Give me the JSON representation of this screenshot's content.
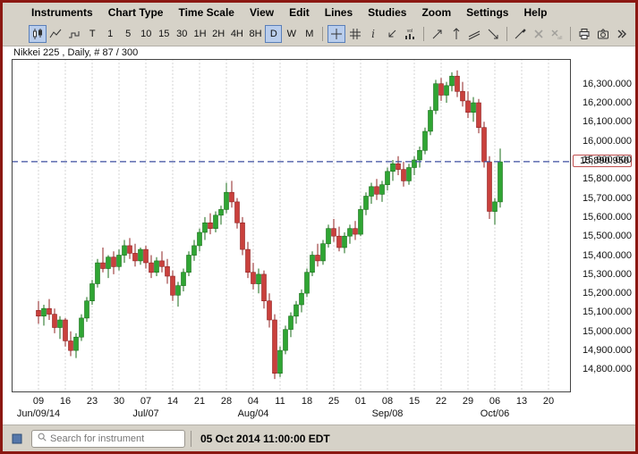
{
  "menu": {
    "items": [
      {
        "id": "instruments",
        "label": "Instruments"
      },
      {
        "id": "chart-type",
        "label": "Chart Type"
      },
      {
        "id": "time-scale",
        "label": "Time Scale"
      },
      {
        "id": "view",
        "label": "View"
      },
      {
        "id": "edit",
        "label": "Edit"
      },
      {
        "id": "lines",
        "label": "Lines"
      },
      {
        "id": "studies",
        "label": "Studies"
      },
      {
        "id": "zoom",
        "label": "Zoom"
      },
      {
        "id": "settings",
        "label": "Settings"
      },
      {
        "id": "help",
        "label": "Help"
      }
    ]
  },
  "toolbar": {
    "items": [
      {
        "name": "candlestick-chart-button",
        "icon": "candlestick",
        "selected": true
      },
      {
        "name": "line-chart-button",
        "icon": "line-chart"
      },
      {
        "name": "tick-chart-button",
        "icon": "tick-step"
      },
      {
        "name": "timescale-tick-button",
        "label": "T"
      },
      {
        "name": "timescale-1min-button",
        "label": "1"
      },
      {
        "name": "timescale-5min-button",
        "label": "5"
      },
      {
        "name": "timescale-10min-button",
        "label": "10"
      },
      {
        "name": "timescale-15min-button",
        "label": "15"
      },
      {
        "name": "timescale-30min-button",
        "label": "30"
      },
      {
        "name": "timescale-1h-button",
        "label": "1H"
      },
      {
        "name": "timescale-2h-button",
        "label": "2H"
      },
      {
        "name": "timescale-4h-button",
        "label": "4H"
      },
      {
        "name": "timescale-8h-button",
        "label": "8H"
      },
      {
        "name": "timescale-daily-button",
        "label": "D",
        "selected": true
      },
      {
        "name": "timescale-weekly-button",
        "label": "W"
      },
      {
        "name": "timescale-monthly-button",
        "label": "M"
      },
      {
        "separator": true
      },
      {
        "name": "crosshair-button",
        "icon": "crosshair",
        "selected": true
      },
      {
        "name": "grid-button",
        "icon": "grid"
      },
      {
        "name": "info-button",
        "icon": "info"
      },
      {
        "name": "data-window-button",
        "icon": "data-arrow"
      },
      {
        "name": "volume-button",
        "icon": "volume"
      },
      {
        "separator": true
      },
      {
        "name": "trend-line-button",
        "icon": "trend-line"
      },
      {
        "name": "vertical-line-button",
        "icon": "vertical-line"
      },
      {
        "name": "parallel-lines-button",
        "icon": "parallel-lines"
      },
      {
        "name": "ray-line-button",
        "icon": "ray"
      },
      {
        "separator": true
      },
      {
        "name": "edit-lines-button",
        "icon": "edit-line"
      },
      {
        "name": "delete-line-button",
        "icon": "close",
        "disabled": true
      },
      {
        "name": "delete-all-lines-button",
        "icon": "close-all",
        "disabled": true
      },
      {
        "separator": true
      },
      {
        "name": "print-button",
        "icon": "printer"
      },
      {
        "name": "snapshot-button",
        "icon": "camera"
      },
      {
        "name": "more-tools-button",
        "icon": "chevron-double-right",
        "align_right": true
      }
    ]
  },
  "chart_header": {
    "title": "Nikkei 225 , Daily, # 87 / 300"
  },
  "chart_data": {
    "type": "candlestick",
    "title": "Nikkei 225 , Daily, # 87 / 300",
    "symbol": "Nikkei 225",
    "timeframe": "Daily",
    "bar_count_label": "# 87 / 300",
    "current_price": 15890.95,
    "current_price_label": "15,890.950",
    "ylim": [
      14680,
      16430
    ],
    "grid": "vertical-dotted",
    "y_ticks": [
      16300,
      16200,
      16100,
      16000,
      15900,
      15800,
      15700,
      15600,
      15500,
      15400,
      15300,
      15200,
      15100,
      15000,
      14900,
      14800
    ],
    "x_ticks": [
      {
        "label": "09",
        "bar": 0
      },
      {
        "label": "16",
        "bar": 5
      },
      {
        "label": "23",
        "bar": 10
      },
      {
        "label": "30",
        "bar": 15
      },
      {
        "label": "07",
        "bar": 20
      },
      {
        "label": "14",
        "bar": 25
      },
      {
        "label": "21",
        "bar": 30
      },
      {
        "label": "28",
        "bar": 35
      },
      {
        "label": "04",
        "bar": 40
      },
      {
        "label": "11",
        "bar": 45
      },
      {
        "label": "18",
        "bar": 50
      },
      {
        "label": "25",
        "bar": 55
      },
      {
        "label": "01",
        "bar": 60
      },
      {
        "label": "08",
        "bar": 65
      },
      {
        "label": "15",
        "bar": 70
      },
      {
        "label": "22",
        "bar": 75
      },
      {
        "label": "29",
        "bar": 80
      },
      {
        "label": "06",
        "bar": 85
      },
      {
        "label": "13",
        "bar": 90
      },
      {
        "label": "20",
        "bar": 95
      }
    ],
    "month_labels": [
      {
        "label": "Jun/09/14",
        "bar": 0
      },
      {
        "label": "Jul/07",
        "bar": 20
      },
      {
        "label": "Aug/04",
        "bar": 40
      },
      {
        "label": "Sep/08",
        "bar": 65
      },
      {
        "label": "Oct/06",
        "bar": 85
      }
    ],
    "candles": [
      [
        15110,
        15160,
        15040,
        15080
      ],
      [
        15080,
        15140,
        15030,
        15120
      ],
      [
        15120,
        15170,
        15060,
        15090
      ],
      [
        15090,
        15120,
        14990,
        15020
      ],
      [
        15020,
        15080,
        14960,
        15060
      ],
      [
        15060,
        15070,
        14920,
        14950
      ],
      [
        14950,
        15000,
        14870,
        14900
      ],
      [
        14900,
        14990,
        14860,
        14970
      ],
      [
        14970,
        15090,
        14950,
        15070
      ],
      [
        15070,
        15180,
        15050,
        15160
      ],
      [
        15160,
        15270,
        15140,
        15250
      ],
      [
        15250,
        15380,
        15230,
        15360
      ],
      [
        15360,
        15440,
        15310,
        15330
      ],
      [
        15330,
        15400,
        15280,
        15390
      ],
      [
        15390,
        15420,
        15300,
        15340
      ],
      [
        15340,
        15430,
        15320,
        15400
      ],
      [
        15400,
        15480,
        15360,
        15450
      ],
      [
        15450,
        15490,
        15380,
        15410
      ],
      [
        15410,
        15460,
        15340,
        15370
      ],
      [
        15370,
        15440,
        15350,
        15430
      ],
      [
        15430,
        15450,
        15330,
        15360
      ],
      [
        15360,
        15400,
        15280,
        15310
      ],
      [
        15310,
        15390,
        15290,
        15370
      ],
      [
        15370,
        15420,
        15310,
        15340
      ],
      [
        15340,
        15380,
        15250,
        15290
      ],
      [
        15290,
        15320,
        15160,
        15190
      ],
      [
        15190,
        15260,
        15130,
        15240
      ],
      [
        15240,
        15330,
        15210,
        15310
      ],
      [
        15310,
        15420,
        15290,
        15400
      ],
      [
        15400,
        15480,
        15370,
        15450
      ],
      [
        15450,
        15540,
        15420,
        15520
      ],
      [
        15520,
        15600,
        15480,
        15570
      ],
      [
        15570,
        15620,
        15510,
        15540
      ],
      [
        15540,
        15630,
        15520,
        15610
      ],
      [
        15610,
        15660,
        15560,
        15640
      ],
      [
        15640,
        15780,
        15620,
        15730
      ],
      [
        15730,
        15790,
        15650,
        15680
      ],
      [
        15680,
        15700,
        15540,
        15570
      ],
      [
        15570,
        15600,
        15400,
        15430
      ],
      [
        15430,
        15470,
        15280,
        15310
      ],
      [
        15310,
        15360,
        15220,
        15250
      ],
      [
        15250,
        15330,
        15200,
        15300
      ],
      [
        15300,
        15320,
        15120,
        15160
      ],
      [
        15160,
        15200,
        15020,
        15060
      ],
      [
        15060,
        15090,
        14750,
        14780
      ],
      [
        14780,
        14920,
        14760,
        14900
      ],
      [
        14900,
        15030,
        14880,
        15010
      ],
      [
        15010,
        15100,
        14970,
        15080
      ],
      [
        15080,
        15160,
        15040,
        15140
      ],
      [
        15140,
        15220,
        15100,
        15200
      ],
      [
        15200,
        15330,
        15180,
        15310
      ],
      [
        15310,
        15420,
        15290,
        15400
      ],
      [
        15400,
        15460,
        15340,
        15370
      ],
      [
        15370,
        15480,
        15350,
        15460
      ],
      [
        15460,
        15560,
        15440,
        15540
      ],
      [
        15540,
        15590,
        15470,
        15500
      ],
      [
        15500,
        15550,
        15420,
        15440
      ],
      [
        15440,
        15520,
        15410,
        15500
      ],
      [
        15500,
        15560,
        15460,
        15540
      ],
      [
        15540,
        15580,
        15480,
        15510
      ],
      [
        15510,
        15660,
        15500,
        15640
      ],
      [
        15640,
        15730,
        15610,
        15710
      ],
      [
        15710,
        15780,
        15670,
        15760
      ],
      [
        15760,
        15800,
        15690,
        15720
      ],
      [
        15720,
        15790,
        15680,
        15770
      ],
      [
        15770,
        15860,
        15740,
        15840
      ],
      [
        15840,
        15900,
        15790,
        15880
      ],
      [
        15880,
        15920,
        15820,
        15850
      ],
      [
        15850,
        15890,
        15760,
        15790
      ],
      [
        15790,
        15880,
        15770,
        15860
      ],
      [
        15860,
        15920,
        15820,
        15900
      ],
      [
        15900,
        15970,
        15860,
        15950
      ],
      [
        15950,
        16070,
        15930,
        16050
      ],
      [
        16050,
        16180,
        16030,
        16160
      ],
      [
        16160,
        16320,
        16140,
        16300
      ],
      [
        16300,
        16330,
        16210,
        16240
      ],
      [
        16240,
        16310,
        16200,
        16290
      ],
      [
        16290,
        16360,
        16260,
        16340
      ],
      [
        16340,
        16370,
        16230,
        16260
      ],
      [
        16260,
        16310,
        16180,
        16210
      ],
      [
        16210,
        16260,
        16120,
        16150
      ],
      [
        16150,
        16230,
        16100,
        16200
      ],
      [
        16200,
        16220,
        16040,
        16070
      ],
      [
        16070,
        16100,
        15860,
        15890
      ],
      [
        15890,
        15920,
        15590,
        15630
      ],
      [
        15630,
        15700,
        15560,
        15680
      ],
      [
        15680,
        15960,
        15650,
        15890
      ]
    ],
    "colors": {
      "up": "#2fa533",
      "up_border": "#1a6e1a",
      "down": "#c9403c",
      "down_border": "#8f2020",
      "grid": "#d6d6d6",
      "price_line": "#3c4fa0",
      "tag_border": "#c05050"
    }
  },
  "bottom_bar": {
    "search_placeholder": "Search for instrument",
    "timestamp": "05 Oct 2014 11:00:00 EDT"
  }
}
